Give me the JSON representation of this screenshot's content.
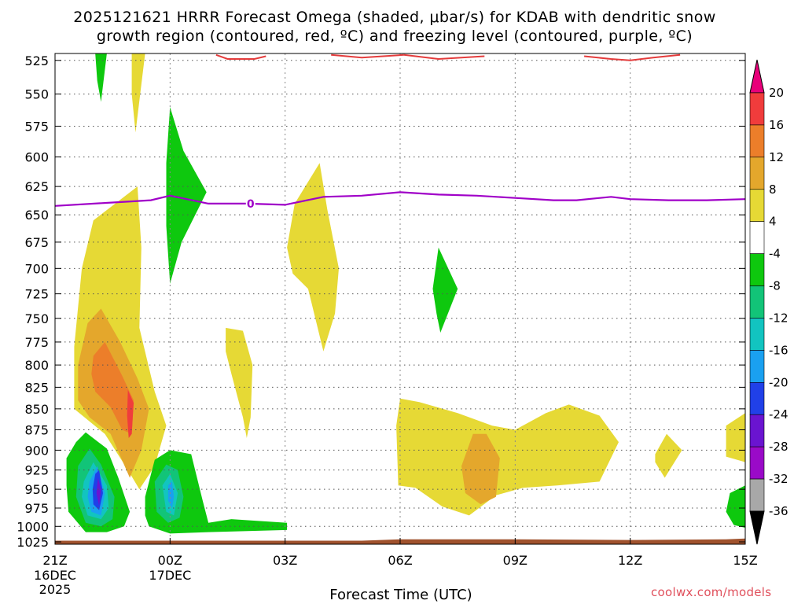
{
  "chart_data": {
    "type": "heatmap",
    "title_line1": "2025121621 HRRR Forecast Omega (shaded, μbar/s) for KDAB with dendritic snow",
    "title_line2": "growth region (contoured, red, ºC) and freezing level (contoured, purple, ºC)",
    "xlabel": "Forecast Time (UTC)",
    "x_ticks": [
      {
        "hour": 0,
        "label": "21Z",
        "sub": [
          "16DEC",
          "2025"
        ]
      },
      {
        "hour": 3,
        "label": "00Z",
        "sub": [
          "17DEC"
        ]
      },
      {
        "hour": 6,
        "label": "03Z",
        "sub": []
      },
      {
        "hour": 9,
        "label": "06Z",
        "sub": []
      },
      {
        "hour": 12,
        "label": "09Z",
        "sub": []
      },
      {
        "hour": 15,
        "label": "12Z",
        "sub": []
      },
      {
        "hour": 18,
        "label": "15Z",
        "sub": []
      }
    ],
    "xlim_hours": [
      0,
      18
    ],
    "y_ticks": [
      525,
      550,
      575,
      600,
      625,
      650,
      675,
      700,
      725,
      750,
      775,
      800,
      825,
      850,
      875,
      900,
      925,
      950,
      975,
      1000,
      1025
    ],
    "ylim_hpa": [
      520,
      1025
    ],
    "y_scale": "log-pressure",
    "grid": true,
    "colorbar": {
      "label_values": [
        "20",
        "16",
        "12",
        "8",
        "4",
        "-4",
        "-8",
        "-12",
        "-16",
        "-20",
        "-24",
        "-28",
        "-32",
        "-36"
      ],
      "bins": [
        {
          "min": 20,
          "max": null,
          "color": "#e8007a"
        },
        {
          "min": 16,
          "max": 20,
          "color": "#f03c3c"
        },
        {
          "min": 12,
          "max": 16,
          "color": "#ec7e2a"
        },
        {
          "min": 8,
          "max": 12,
          "color": "#e4a72c"
        },
        {
          "min": 4,
          "max": 8,
          "color": "#e6d935"
        },
        {
          "min": -4,
          "max": 4,
          "color": "#ffffff"
        },
        {
          "min": -8,
          "max": -4,
          "color": "#0ec80e"
        },
        {
          "min": -12,
          "max": -8,
          "color": "#12c478"
        },
        {
          "min": -16,
          "max": -12,
          "color": "#12c4c0"
        },
        {
          "min": -20,
          "max": -16,
          "color": "#1aa0f0"
        },
        {
          "min": -24,
          "max": -20,
          "color": "#2040e8"
        },
        {
          "min": -28,
          "max": -24,
          "color": "#6a14d0"
        },
        {
          "min": -32,
          "max": -28,
          "color": "#9a0ac8"
        },
        {
          "min": -36,
          "max": -32,
          "color": "#a8a8a8"
        },
        {
          "min": null,
          "max": -36,
          "color": "#000000"
        }
      ]
    },
    "omega_regions": [
      {
        "value_bin": "-8..-4",
        "color": "#0ec80e",
        "points": [
          [
            1.05,
            520
          ],
          [
            1.35,
            520
          ],
          [
            1.2,
            556
          ],
          [
            1.1,
            540
          ]
        ]
      },
      {
        "value_bin": "4..8",
        "color": "#e6d935",
        "points": [
          [
            2.0,
            520
          ],
          [
            2.35,
            520
          ],
          [
            2.1,
            580
          ],
          [
            2.0,
            550
          ]
        ]
      },
      {
        "value_bin": "-8..-4",
        "color": "#0ec80e",
        "points": [
          [
            2.9,
            605
          ],
          [
            3.0,
            560
          ],
          [
            3.35,
            595
          ],
          [
            3.95,
            630
          ],
          [
            3.3,
            675
          ],
          [
            3.0,
            715
          ],
          [
            2.9,
            660
          ]
        ]
      },
      {
        "value_bin": "4..8",
        "color": "#e6d935",
        "points": [
          [
            0.5,
            780
          ],
          [
            0.7,
            700
          ],
          [
            1.0,
            655
          ],
          [
            1.8,
            634
          ],
          [
            2.15,
            625
          ],
          [
            2.25,
            680
          ],
          [
            2.2,
            760
          ],
          [
            2.6,
            830
          ],
          [
            2.9,
            870
          ],
          [
            2.6,
            920
          ],
          [
            2.2,
            950
          ],
          [
            1.9,
            925
          ],
          [
            1.3,
            880
          ],
          [
            0.5,
            850
          ]
        ]
      },
      {
        "value_bin": "8..12",
        "color": "#e4a72c",
        "points": [
          [
            0.6,
            800
          ],
          [
            0.85,
            755
          ],
          [
            1.2,
            740
          ],
          [
            1.7,
            775
          ],
          [
            2.15,
            815
          ],
          [
            2.45,
            850
          ],
          [
            2.25,
            900
          ],
          [
            1.95,
            935
          ],
          [
            1.45,
            880
          ],
          [
            0.9,
            860
          ],
          [
            0.6,
            840
          ]
        ]
      },
      {
        "value_bin": "12..16",
        "color": "#ec7e2a",
        "points": [
          [
            1.0,
            790
          ],
          [
            1.3,
            775
          ],
          [
            1.75,
            812
          ],
          [
            2.05,
            840
          ],
          [
            2.0,
            880
          ],
          [
            1.75,
            875
          ],
          [
            1.45,
            848
          ],
          [
            1.05,
            830
          ],
          [
            0.95,
            810
          ]
        ]
      },
      {
        "value_bin": "16..20",
        "color": "#f03c3c",
        "points": [
          [
            1.9,
            828
          ],
          [
            2.05,
            843
          ],
          [
            2.0,
            880
          ],
          [
            1.92,
            885
          ],
          [
            1.88,
            858
          ]
        ]
      },
      {
        "value_bin": "-8..-4",
        "color": "#0ec80e",
        "points": [
          [
            0.3,
            910
          ],
          [
            0.55,
            890
          ],
          [
            0.8,
            878
          ],
          [
            1.35,
            898
          ],
          [
            1.65,
            935
          ],
          [
            1.95,
            980
          ],
          [
            1.8,
            1000
          ],
          [
            1.35,
            1008
          ],
          [
            0.8,
            1008
          ],
          [
            0.35,
            980
          ],
          [
            0.3,
            945
          ]
        ]
      },
      {
        "value_bin": "-12..-8",
        "color": "#12c478",
        "points": [
          [
            0.6,
            920
          ],
          [
            0.9,
            898
          ],
          [
            1.2,
            918
          ],
          [
            1.55,
            960
          ],
          [
            1.5,
            990
          ],
          [
            1.2,
            1000
          ],
          [
            0.8,
            995
          ],
          [
            0.55,
            960
          ]
        ]
      },
      {
        "value_bin": "-16..-12",
        "color": "#12c4c0",
        "points": [
          [
            0.75,
            940
          ],
          [
            1.0,
            915
          ],
          [
            1.35,
            945
          ],
          [
            1.4,
            975
          ],
          [
            1.2,
            990
          ],
          [
            0.85,
            985
          ],
          [
            0.7,
            960
          ]
        ]
      },
      {
        "value_bin": "-20..-16",
        "color": "#1aa0f0",
        "points": [
          [
            0.9,
            940
          ],
          [
            1.1,
            920
          ],
          [
            1.3,
            955
          ],
          [
            1.2,
            985
          ],
          [
            0.95,
            980
          ],
          [
            0.85,
            960
          ]
        ]
      },
      {
        "value_bin": "-24..-20",
        "color": "#2040e8",
        "points": [
          [
            1.05,
            930
          ],
          [
            1.15,
            925
          ],
          [
            1.25,
            955
          ],
          [
            1.15,
            978
          ],
          [
            1.0,
            970
          ],
          [
            0.98,
            950
          ]
        ]
      },
      {
        "value_bin": "-28..-24",
        "color": "#6a14d0",
        "points": [
          [
            1.12,
            935
          ],
          [
            1.2,
            950
          ],
          [
            1.15,
            972
          ],
          [
            1.08,
            955
          ]
        ]
      },
      {
        "value_bin": "-8..-4",
        "color": "#0ec80e",
        "points": [
          [
            2.35,
            960
          ],
          [
            2.6,
            912
          ],
          [
            3.0,
            900
          ],
          [
            3.55,
            905
          ],
          [
            3.85,
            965
          ],
          [
            4.0,
            995
          ],
          [
            4.6,
            990
          ],
          [
            6.05,
            995
          ],
          [
            6.05,
            1005
          ],
          [
            4.0,
            1008
          ],
          [
            3.0,
            1010
          ],
          [
            2.45,
            1000
          ],
          [
            2.35,
            985
          ]
        ]
      },
      {
        "value_bin": "-12..-8",
        "color": "#12c478",
        "points": [
          [
            2.6,
            940
          ],
          [
            2.9,
            918
          ],
          [
            3.2,
            925
          ],
          [
            3.35,
            960
          ],
          [
            3.25,
            988
          ],
          [
            2.95,
            995
          ],
          [
            2.65,
            980
          ]
        ]
      },
      {
        "value_bin": "-16..-12",
        "color": "#12c4c0",
        "points": [
          [
            2.8,
            945
          ],
          [
            3.0,
            930
          ],
          [
            3.2,
            955
          ],
          [
            3.1,
            985
          ],
          [
            2.9,
            980
          ]
        ]
      },
      {
        "value_bin": "-20..-16",
        "color": "#1aa0f0",
        "points": [
          [
            2.95,
            945
          ],
          [
            3.05,
            940
          ],
          [
            3.1,
            960
          ],
          [
            3.05,
            975
          ],
          [
            2.95,
            965
          ]
        ]
      },
      {
        "value_bin": "4..8",
        "color": "#e6d935",
        "points": [
          [
            4.45,
            760
          ],
          [
            4.9,
            763
          ],
          [
            5.15,
            800
          ],
          [
            5.1,
            860
          ],
          [
            5.0,
            885
          ],
          [
            4.9,
            860
          ],
          [
            4.6,
            810
          ],
          [
            4.45,
            785
          ]
        ]
      },
      {
        "value_bin": "4..8",
        "color": "#e6d935",
        "points": [
          [
            6.05,
            680
          ],
          [
            6.25,
            640
          ],
          [
            6.9,
            605
          ],
          [
            7.1,
            645
          ],
          [
            7.4,
            700
          ],
          [
            7.3,
            745
          ],
          [
            7.0,
            785
          ],
          [
            6.6,
            720
          ],
          [
            6.2,
            705
          ]
        ]
      },
      {
        "value_bin": "-8..-4",
        "color": "#0ec80e",
        "points": [
          [
            9.85,
            720
          ],
          [
            10.0,
            680
          ],
          [
            10.5,
            720
          ],
          [
            10.05,
            765
          ],
          [
            9.95,
            745
          ]
        ]
      },
      {
        "value_bin": "4..8",
        "color": "#e6d935",
        "points": [
          [
            8.9,
            870
          ],
          [
            9.0,
            838
          ],
          [
            9.5,
            842
          ],
          [
            10.5,
            855
          ],
          [
            11.4,
            870
          ],
          [
            12.0,
            875
          ],
          [
            12.8,
            855
          ],
          [
            13.4,
            845
          ],
          [
            14.2,
            858
          ],
          [
            14.7,
            890
          ],
          [
            14.2,
            940
          ],
          [
            13.1,
            945
          ],
          [
            12.2,
            948
          ],
          [
            11.5,
            958
          ],
          [
            10.8,
            985
          ],
          [
            10.1,
            973
          ],
          [
            9.4,
            948
          ],
          [
            8.95,
            945
          ]
        ]
      },
      {
        "value_bin": "8..12",
        "color": "#e4a72c",
        "points": [
          [
            10.6,
            920
          ],
          [
            10.9,
            880
          ],
          [
            11.25,
            880
          ],
          [
            11.6,
            910
          ],
          [
            11.5,
            960
          ],
          [
            11.1,
            970
          ],
          [
            10.7,
            955
          ]
        ]
      },
      {
        "value_bin": "4..8",
        "color": "#e6d935",
        "points": [
          [
            15.65,
            905
          ],
          [
            15.95,
            880
          ],
          [
            16.35,
            900
          ],
          [
            15.9,
            935
          ],
          [
            15.65,
            915
          ]
        ]
      },
      {
        "value_bin": "4..8",
        "color": "#e6d935",
        "points": [
          [
            17.5,
            870
          ],
          [
            18.0,
            855
          ],
          [
            18.0,
            915
          ],
          [
            17.5,
            908
          ]
        ]
      },
      {
        "value_bin": "-8..-4",
        "color": "#0ec80e",
        "points": [
          [
            17.5,
            980
          ],
          [
            17.6,
            955
          ],
          [
            18.0,
            945
          ],
          [
            18.0,
            1002
          ],
          [
            17.7,
            998
          ]
        ]
      }
    ],
    "freezing_level": {
      "color": "#a000c8",
      "label": "0",
      "label_hour": 5.1,
      "points": [
        [
          0,
          642
        ],
        [
          1.5,
          639
        ],
        [
          2.5,
          637
        ],
        [
          3.0,
          633
        ],
        [
          4.0,
          640
        ],
        [
          5.0,
          640
        ],
        [
          6.0,
          641
        ],
        [
          7.0,
          634
        ],
        [
          8.0,
          633
        ],
        [
          9.0,
          630
        ],
        [
          10.0,
          632
        ],
        [
          11.0,
          633
        ],
        [
          12.0,
          635
        ],
        [
          13.0,
          637
        ],
        [
          13.6,
          637
        ],
        [
          14.5,
          634
        ],
        [
          15.0,
          636
        ],
        [
          16.0,
          637
        ],
        [
          17.0,
          637
        ],
        [
          18.0,
          636
        ]
      ]
    },
    "dgz_red_contours": [
      {
        "color": "#e43c3c",
        "points": [
          [
            4.2,
            521
          ],
          [
            4.5,
            524
          ],
          [
            5.2,
            524
          ],
          [
            5.5,
            522
          ]
        ]
      },
      {
        "color": "#e43c3c",
        "points": [
          [
            7.2,
            521
          ],
          [
            8.0,
            523
          ],
          [
            9.1,
            521
          ]
        ]
      },
      {
        "color": "#e43c3c",
        "points": [
          [
            9.1,
            521
          ],
          [
            10.0,
            524
          ],
          [
            11.2,
            522
          ]
        ]
      },
      {
        "color": "#e43c3c",
        "points": [
          [
            13.8,
            522
          ],
          [
            14.5,
            524
          ],
          [
            15.0,
            525
          ],
          [
            15.6,
            523
          ],
          [
            16.3,
            521
          ]
        ]
      }
    ],
    "ground": {
      "color": "#a0522d",
      "top_hpa": [
        [
          0,
          1020
        ],
        [
          8.0,
          1020
        ],
        [
          9.0,
          1018
        ],
        [
          12.0,
          1018
        ],
        [
          15.0,
          1019
        ],
        [
          17.5,
          1018
        ],
        [
          18.0,
          1017
        ]
      ]
    }
  },
  "credit": "coolwx.com/models"
}
